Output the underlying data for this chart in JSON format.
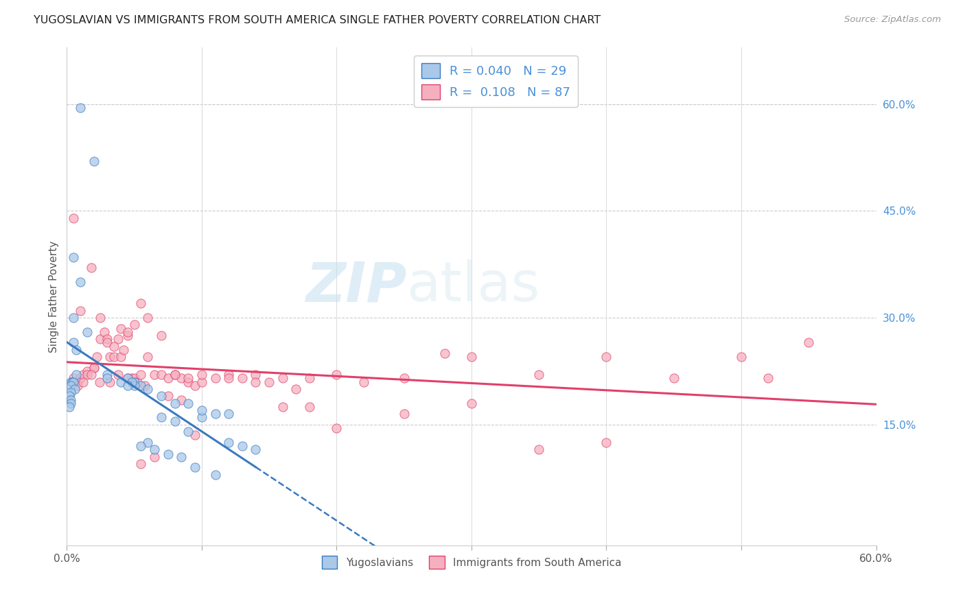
{
  "title": "YUGOSLAVIAN VS IMMIGRANTS FROM SOUTH AMERICA SINGLE FATHER POVERTY CORRELATION CHART",
  "source": "Source: ZipAtlas.com",
  "ylabel": "Single Father Poverty",
  "right_yticks": [
    "60.0%",
    "45.0%",
    "30.0%",
    "15.0%"
  ],
  "right_ytick_vals": [
    0.6,
    0.45,
    0.3,
    0.15
  ],
  "xlim": [
    0.0,
    0.6
  ],
  "ylim": [
    -0.02,
    0.68
  ],
  "yugo_color": "#aac8e8",
  "sa_color": "#f5b0c0",
  "yugo_line_color": "#3a7abf",
  "sa_line_color": "#e0406a",
  "watermark_zip": "ZIP",
  "watermark_atlas": "atlas",
  "yugo_scatter_x": [
    0.01,
    0.02,
    0.005,
    0.01,
    0.005,
    0.015,
    0.005,
    0.007,
    0.007,
    0.003,
    0.004,
    0.005,
    0.003,
    0.006,
    0.003,
    0.002,
    0.003,
    0.003,
    0.002,
    0.03,
    0.04,
    0.03,
    0.05,
    0.055,
    0.045,
    0.05,
    0.048,
    0.045,
    0.12,
    0.1,
    0.08,
    0.09,
    0.07,
    0.06,
    0.055,
    0.065,
    0.075,
    0.085,
    0.095,
    0.11,
    0.06,
    0.07,
    0.08,
    0.09,
    0.1,
    0.11,
    0.12,
    0.13,
    0.14
  ],
  "yugo_scatter_y": [
    0.595,
    0.52,
    0.385,
    0.35,
    0.3,
    0.28,
    0.265,
    0.255,
    0.22,
    0.21,
    0.21,
    0.21,
    0.205,
    0.2,
    0.195,
    0.19,
    0.185,
    0.18,
    0.175,
    0.22,
    0.21,
    0.215,
    0.21,
    0.205,
    0.215,
    0.205,
    0.21,
    0.205,
    0.165,
    0.16,
    0.155,
    0.14,
    0.16,
    0.125,
    0.12,
    0.115,
    0.108,
    0.105,
    0.09,
    0.08,
    0.2,
    0.19,
    0.18,
    0.18,
    0.17,
    0.165,
    0.125,
    0.12,
    0.115
  ],
  "sa_scatter_x": [
    0.005,
    0.008,
    0.01,
    0.012,
    0.015,
    0.018,
    0.02,
    0.022,
    0.025,
    0.028,
    0.03,
    0.032,
    0.035,
    0.038,
    0.04,
    0.042,
    0.045,
    0.048,
    0.05,
    0.052,
    0.055,
    0.058,
    0.06,
    0.065,
    0.07,
    0.075,
    0.08,
    0.085,
    0.09,
    0.095,
    0.1,
    0.11,
    0.12,
    0.13,
    0.14,
    0.15,
    0.16,
    0.17,
    0.18,
    0.2,
    0.22,
    0.25,
    0.28,
    0.3,
    0.35,
    0.4,
    0.45,
    0.5,
    0.52,
    0.55,
    0.005,
    0.01,
    0.015,
    0.02,
    0.025,
    0.03,
    0.035,
    0.04,
    0.045,
    0.05,
    0.055,
    0.06,
    0.07,
    0.08,
    0.09,
    0.1,
    0.12,
    0.14,
    0.16,
    0.18,
    0.2,
    0.25,
    0.3,
    0.35,
    0.4,
    0.008,
    0.012,
    0.018,
    0.024,
    0.032,
    0.038,
    0.045,
    0.055,
    0.065,
    0.075,
    0.085,
    0.095
  ],
  "sa_scatter_y": [
    0.215,
    0.21,
    0.215,
    0.22,
    0.225,
    0.37,
    0.23,
    0.245,
    0.27,
    0.28,
    0.27,
    0.245,
    0.245,
    0.27,
    0.245,
    0.255,
    0.275,
    0.215,
    0.215,
    0.21,
    0.22,
    0.205,
    0.245,
    0.22,
    0.22,
    0.215,
    0.22,
    0.215,
    0.21,
    0.205,
    0.21,
    0.215,
    0.22,
    0.215,
    0.22,
    0.21,
    0.215,
    0.2,
    0.215,
    0.22,
    0.21,
    0.215,
    0.25,
    0.245,
    0.22,
    0.245,
    0.215,
    0.245,
    0.215,
    0.265,
    0.44,
    0.31,
    0.22,
    0.23,
    0.3,
    0.265,
    0.26,
    0.285,
    0.28,
    0.29,
    0.32,
    0.3,
    0.275,
    0.22,
    0.215,
    0.22,
    0.215,
    0.21,
    0.175,
    0.175,
    0.145,
    0.165,
    0.18,
    0.115,
    0.125,
    0.205,
    0.21,
    0.22,
    0.21,
    0.21,
    0.22,
    0.215,
    0.095,
    0.105,
    0.19,
    0.185,
    0.135
  ]
}
